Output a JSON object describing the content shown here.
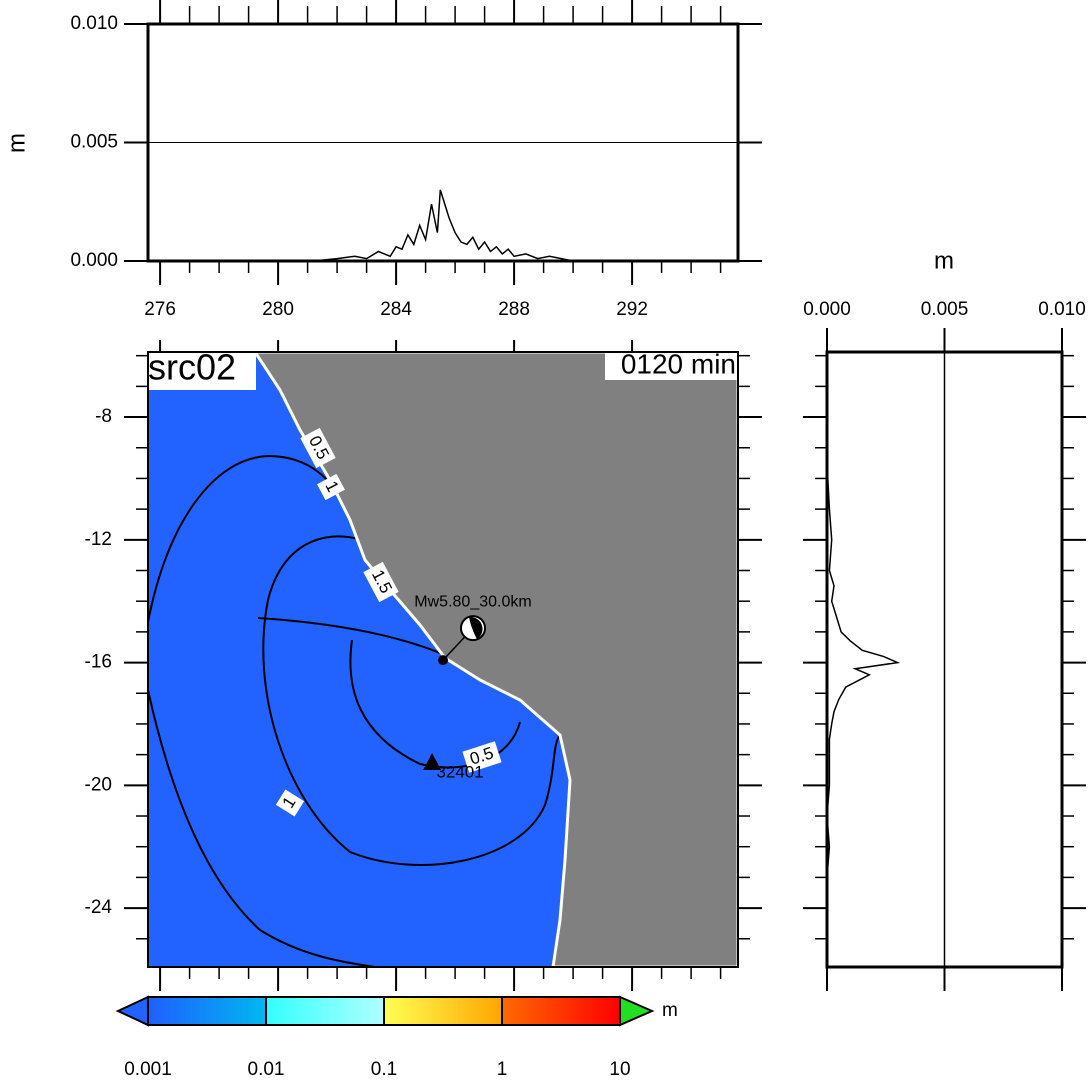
{
  "chart_data": [
    {
      "type": "line",
      "ylabel": "m",
      "x": [
        281.2,
        282,
        282.6,
        283,
        283.4,
        283.8,
        284,
        284.2,
        284.4,
        284.6,
        284.8,
        285,
        285.2,
        285.4,
        285.5,
        285.6,
        285.8,
        286,
        286.2,
        286.4,
        286.6,
        286.8,
        287,
        287.2,
        287.4,
        287.6,
        287.8,
        288,
        288.4,
        288.8,
        289.2,
        289.6,
        290
      ],
      "values": [
        0,
        0.0001,
        0.0002,
        0.0001,
        0.0004,
        0.0002,
        0.0006,
        0.0005,
        0.0011,
        0.0007,
        0.0015,
        0.0009,
        0.0024,
        0.0012,
        0.003,
        0.0026,
        0.0018,
        0.0012,
        0.0008,
        0.0007,
        0.001,
        0.0005,
        0.0008,
        0.0004,
        0.0006,
        0.0003,
        0.0005,
        0.0002,
        0.0003,
        0.0001,
        0.0002,
        0.0001,
        0
      ],
      "color": "#000000",
      "xlim": [
        275.59,
        295.59
      ],
      "ylim": [
        0,
        0.01
      ],
      "xticks": [
        276,
        280,
        284,
        288,
        292
      ],
      "xminor": [
        277,
        278,
        279,
        281,
        282,
        283,
        285,
        286,
        287,
        289,
        290,
        291,
        293,
        294,
        295
      ],
      "yticks": [
        {
          "value": 0,
          "label": "0.000"
        },
        0.005,
        {
          "value": 0.01,
          "label": "0.010"
        }
      ],
      "grid": "y"
    },
    {
      "type": "line",
      "orientation": "horizontal",
      "xlabel": "m",
      "y": [
        -9.5,
        -11,
        -12,
        -13,
        -13.5,
        -14,
        -14.5,
        -15,
        -15.3,
        -15.6,
        -15.8,
        -16,
        -16.2,
        -16.4,
        -16.8,
        -17.2,
        -17.6,
        -18,
        -18.5,
        -19,
        -20,
        -21,
        -22,
        -23,
        -24,
        -25
      ],
      "values": [
        0,
        0.0001,
        0.0002,
        0.0001,
        0.0003,
        0.0002,
        0.0004,
        0.0006,
        0.001,
        0.0015,
        0.0024,
        0.003,
        0.0012,
        0.0018,
        0.0008,
        0.0005,
        0.0003,
        0.0002,
        0.0001,
        0.0001,
        0.0001,
        0,
        0.0001,
        0,
        0,
        0
      ],
      "color": "#000000",
      "xlim": [
        0,
        0.01
      ],
      "xticks": [
        {
          "value": 0,
          "label": "0.000"
        },
        0.005,
        {
          "value": 0.01,
          "label": "0.010"
        }
      ],
      "grid": "x"
    },
    {
      "type": "map",
      "title": "src02",
      "time_label": "0120 min",
      "ylim": [
        -25.92,
        -5.88
      ],
      "yticks": [
        -8,
        -12,
        -16,
        -20,
        -24
      ],
      "yminor": [
        -6,
        -7,
        -9,
        -10,
        -11,
        -13,
        -14,
        -15,
        -17,
        -18,
        -19,
        -21,
        -22,
        -23,
        -25
      ],
      "ocean_color": "#2262ff",
      "land_color": "#808080",
      "contour_labels": [
        0.5,
        1,
        1.5,
        0.5,
        1
      ],
      "source": {
        "label": "Mw5.80_30.0km",
        "lon": 285.59,
        "lat": -15.92
      },
      "station": {
        "label": "32401",
        "lon": 285.22,
        "lat": -19.24
      },
      "colorbar": {
        "ticks": [
          0.001,
          0.01,
          0.1,
          1,
          10
        ],
        "unit": "m",
        "scale": "log",
        "colors": [
          "#1f5fff",
          "#00b8f0",
          "#33ffff",
          "#b0ffff",
          "#ffff55",
          "#ffa500",
          "#ff6a00",
          "#ff0000"
        ],
        "under_color": "#2262ff",
        "over_color": "#22dd22"
      }
    }
  ]
}
